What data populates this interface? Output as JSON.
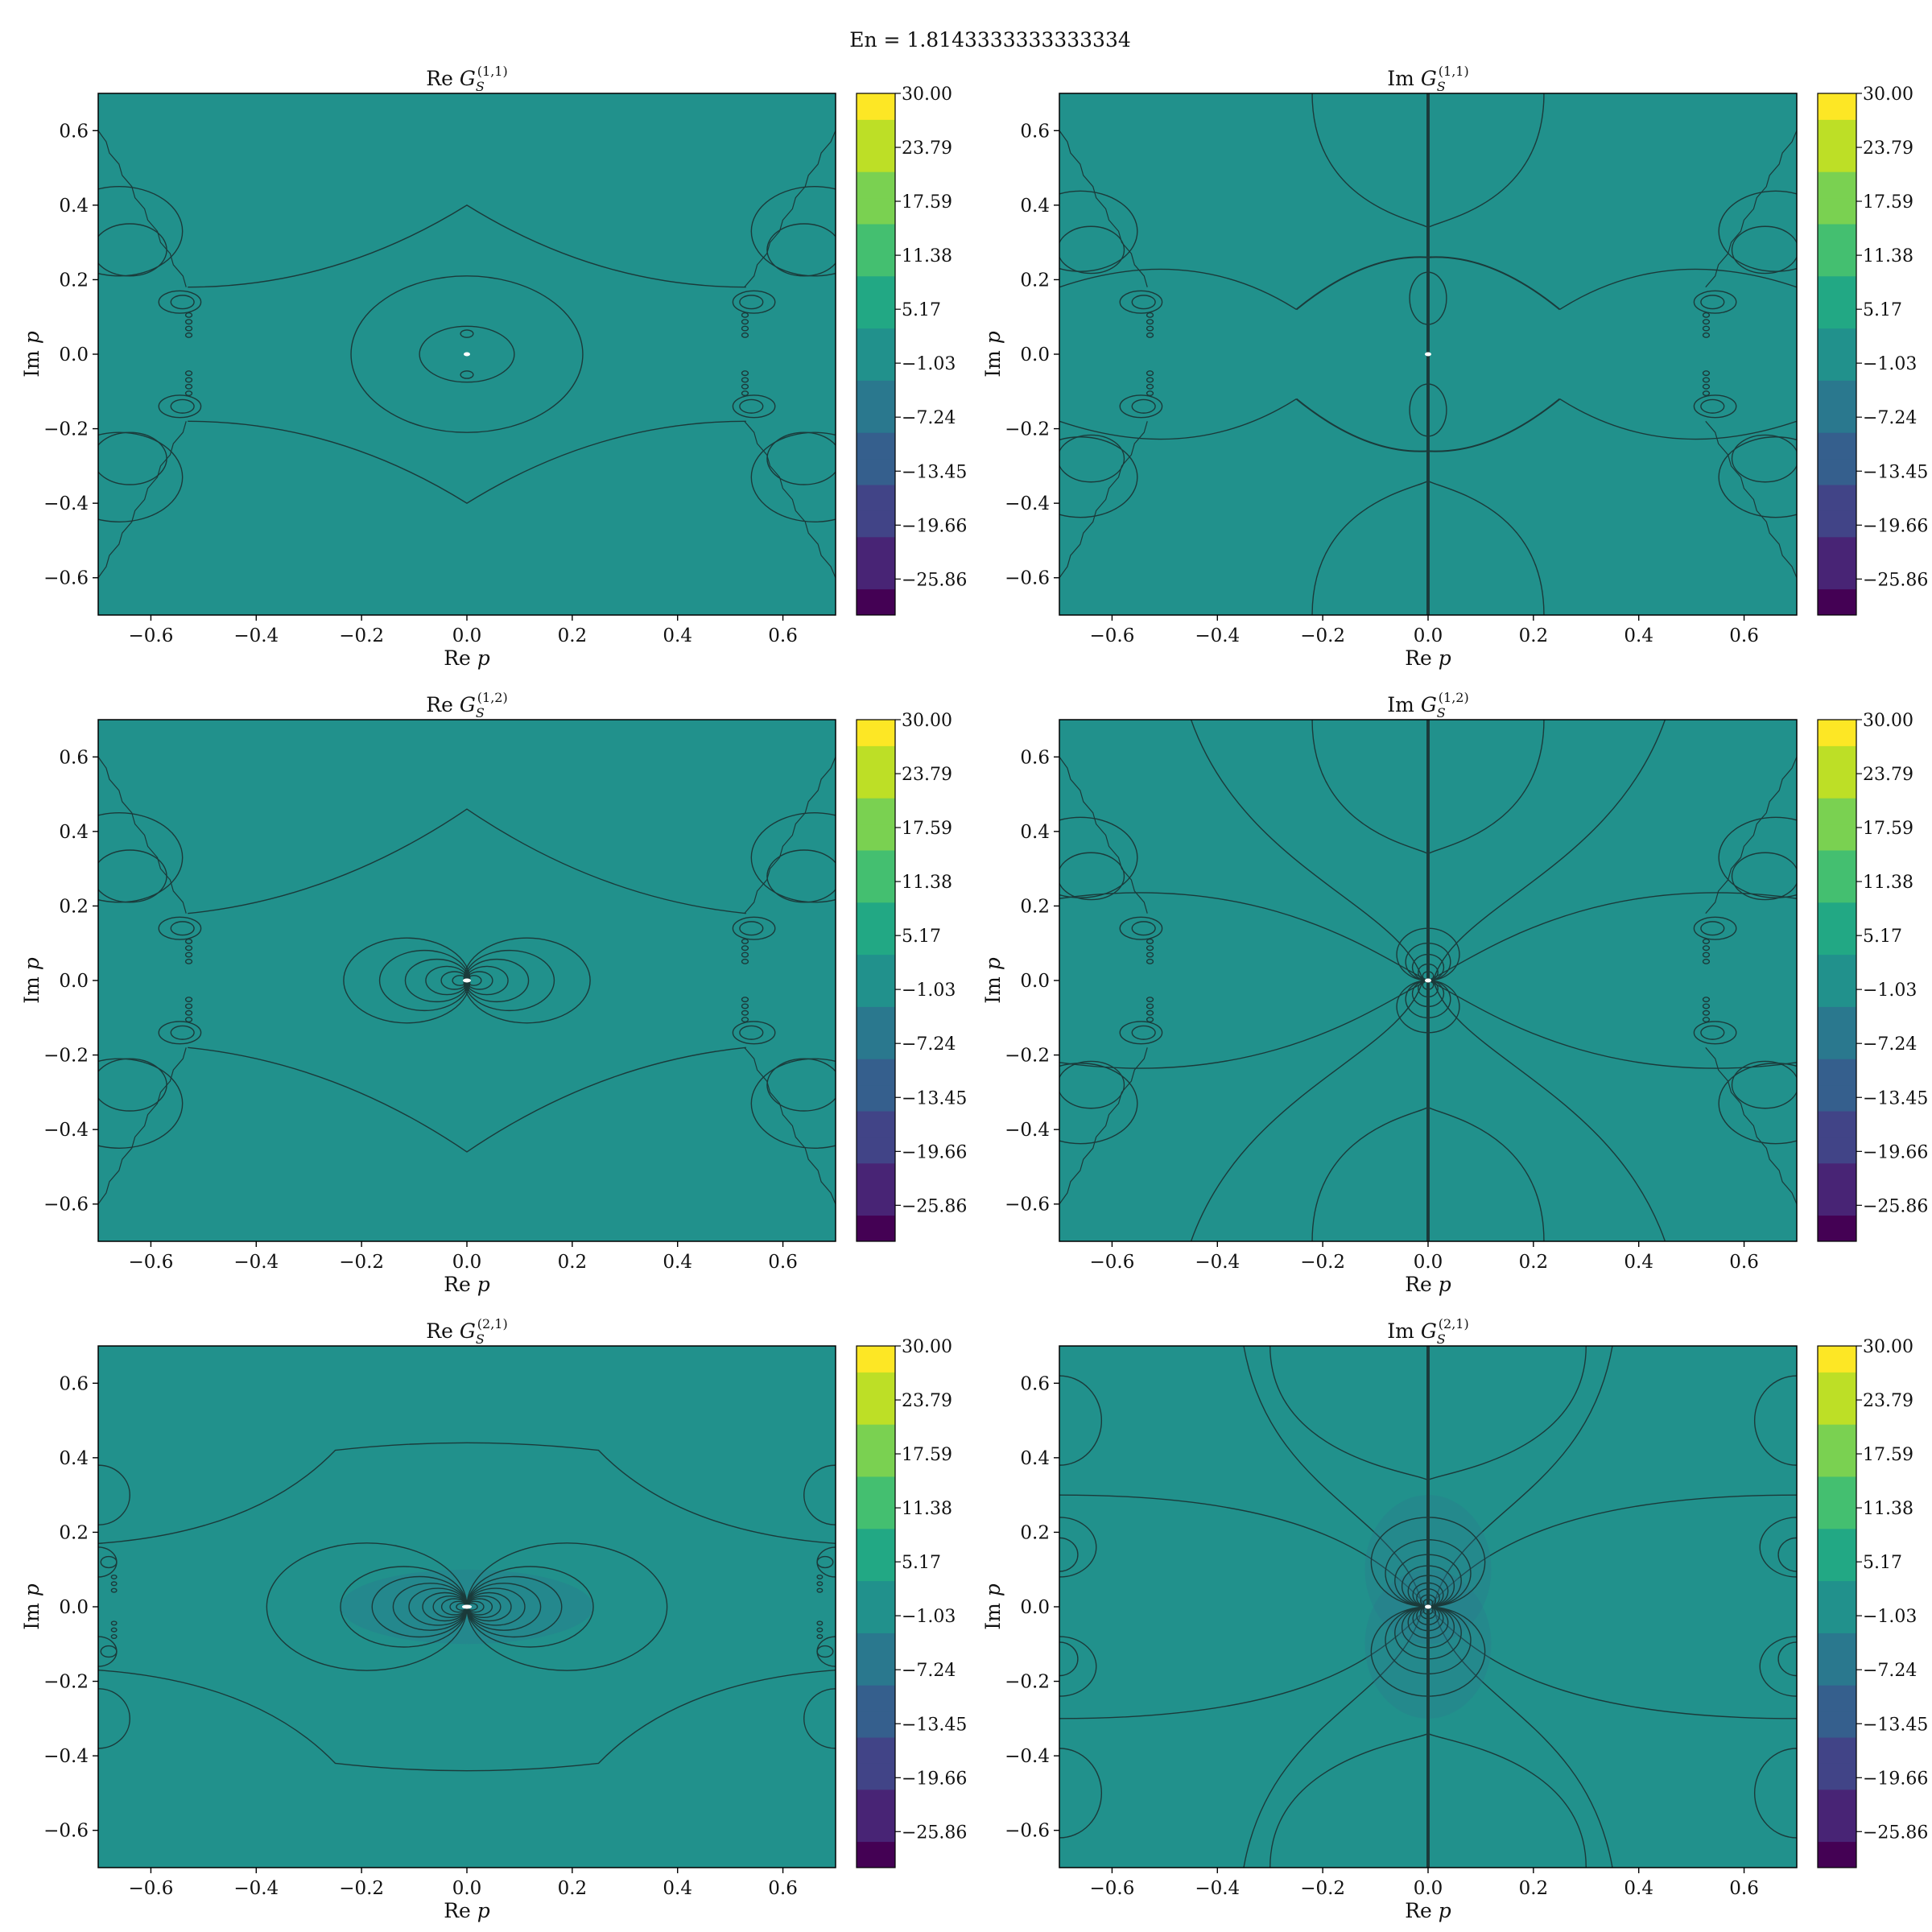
{
  "suptitle": "En = 1.8143333333333334",
  "colors": {
    "field": "#21918c",
    "contour": "#1b3a3a",
    "axis": "#000000",
    "viridis": [
      "#440154",
      "#482475",
      "#414487",
      "#355f8d",
      "#2a788e",
      "#21918c",
      "#22a884",
      "#44bf70",
      "#7ad151",
      "#bddf26",
      "#fde725"
    ]
  },
  "chart_data": [
    {
      "type": "heatmap",
      "title_prefix": "Re",
      "title_math": "G",
      "title_sub": "S",
      "title_sup": "(1,1)",
      "xlabel_prefix": "Re",
      "xlabel_var": "p",
      "ylabel_prefix": "Im",
      "ylabel_var": "p",
      "xlim": [
        -0.7,
        0.7
      ],
      "ylim": [
        -0.7,
        0.7
      ],
      "xticks": [
        -0.6,
        -0.4,
        -0.2,
        0.0,
        0.2,
        0.4,
        0.6
      ],
      "yticks": [
        -0.6,
        -0.4,
        -0.2,
        0.0,
        0.2,
        0.4,
        0.6
      ],
      "colorbar": {
        "vmin": -30,
        "vmax": 30,
        "ticks": [
          "30.00",
          "23.79",
          "17.59",
          "11.38",
          "5.17",
          "−1.03",
          "−7.24",
          "−13.45",
          "−19.66",
          "−25.86"
        ]
      },
      "pattern": "re11"
    },
    {
      "type": "heatmap",
      "title_prefix": "Im",
      "title_math": "G",
      "title_sub": "S",
      "title_sup": "(1,1)",
      "xlabel_prefix": "Re",
      "xlabel_var": "p",
      "ylabel_prefix": "Im",
      "ylabel_var": "p",
      "xlim": [
        -0.7,
        0.7
      ],
      "ylim": [
        -0.7,
        0.7
      ],
      "xticks": [
        -0.6,
        -0.4,
        -0.2,
        0.0,
        0.2,
        0.4,
        0.6
      ],
      "yticks": [
        -0.6,
        -0.4,
        -0.2,
        0.0,
        0.2,
        0.4,
        0.6
      ],
      "colorbar": {
        "vmin": -30,
        "vmax": 30,
        "ticks": [
          "30.00",
          "23.79",
          "17.59",
          "11.38",
          "5.17",
          "−1.03",
          "−7.24",
          "−13.45",
          "−19.66",
          "−25.86"
        ]
      },
      "pattern": "im11"
    },
    {
      "type": "heatmap",
      "title_prefix": "Re",
      "title_math": "G",
      "title_sub": "S",
      "title_sup": "(1,2)",
      "xlabel_prefix": "Re",
      "xlabel_var": "p",
      "ylabel_prefix": "Im",
      "ylabel_var": "p",
      "xlim": [
        -0.7,
        0.7
      ],
      "ylim": [
        -0.7,
        0.7
      ],
      "xticks": [
        -0.6,
        -0.4,
        -0.2,
        0.0,
        0.2,
        0.4,
        0.6
      ],
      "yticks": [
        -0.6,
        -0.4,
        -0.2,
        0.0,
        0.2,
        0.4,
        0.6
      ],
      "colorbar": {
        "vmin": -30,
        "vmax": 30,
        "ticks": [
          "30.00",
          "23.79",
          "17.59",
          "11.38",
          "5.17",
          "−1.03",
          "−7.24",
          "−13.45",
          "−19.66",
          "−25.86"
        ]
      },
      "pattern": "re12"
    },
    {
      "type": "heatmap",
      "title_prefix": "Im",
      "title_math": "G",
      "title_sub": "S",
      "title_sup": "(1,2)",
      "xlabel_prefix": "Re",
      "xlabel_var": "p",
      "ylabel_prefix": "Im",
      "ylabel_var": "p",
      "xlim": [
        -0.7,
        0.7
      ],
      "ylim": [
        -0.7,
        0.7
      ],
      "xticks": [
        -0.6,
        -0.4,
        -0.2,
        0.0,
        0.2,
        0.4,
        0.6
      ],
      "yticks": [
        -0.6,
        -0.4,
        -0.2,
        0.0,
        0.2,
        0.4,
        0.6
      ],
      "colorbar": {
        "vmin": -30,
        "vmax": 30,
        "ticks": [
          "30.00",
          "23.79",
          "17.59",
          "11.38",
          "5.17",
          "−1.03",
          "−7.24",
          "−13.45",
          "−19.66",
          "−25.86"
        ]
      },
      "pattern": "im12"
    },
    {
      "type": "heatmap",
      "title_prefix": "Re",
      "title_math": "G",
      "title_sub": "S",
      "title_sup": "(2,1)",
      "xlabel_prefix": "Re",
      "xlabel_var": "p",
      "ylabel_prefix": "Im",
      "ylabel_var": "p",
      "xlim": [
        -0.7,
        0.7
      ],
      "ylim": [
        -0.7,
        0.7
      ],
      "xticks": [
        -0.6,
        -0.4,
        -0.2,
        0.0,
        0.2,
        0.4,
        0.6
      ],
      "yticks": [
        -0.6,
        -0.4,
        -0.2,
        0.0,
        0.2,
        0.4,
        0.6
      ],
      "colorbar": {
        "vmin": -30,
        "vmax": 30,
        "ticks": [
          "30.00",
          "23.79",
          "17.59",
          "11.38",
          "5.17",
          "−1.03",
          "−7.24",
          "−13.45",
          "−19.66",
          "−25.86"
        ]
      },
      "pattern": "re21"
    },
    {
      "type": "heatmap",
      "title_prefix": "Im",
      "title_math": "G",
      "title_sub": "S",
      "title_sup": "(2,1)",
      "xlabel_prefix": "Re",
      "xlabel_var": "p",
      "ylabel_prefix": "Im",
      "ylabel_var": "p",
      "xlim": [
        -0.7,
        0.7
      ],
      "ylim": [
        -0.7,
        0.7
      ],
      "xticks": [
        -0.6,
        -0.4,
        -0.2,
        0.0,
        0.2,
        0.4,
        0.6
      ],
      "yticks": [
        -0.6,
        -0.4,
        -0.2,
        0.0,
        0.2,
        0.4,
        0.6
      ],
      "colorbar": {
        "vmin": -30,
        "vmax": 30,
        "ticks": [
          "30.00",
          "23.79",
          "17.59",
          "11.38",
          "5.17",
          "−1.03",
          "−7.24",
          "−13.45",
          "−19.66",
          "−25.86"
        ]
      },
      "pattern": "im21"
    }
  ]
}
